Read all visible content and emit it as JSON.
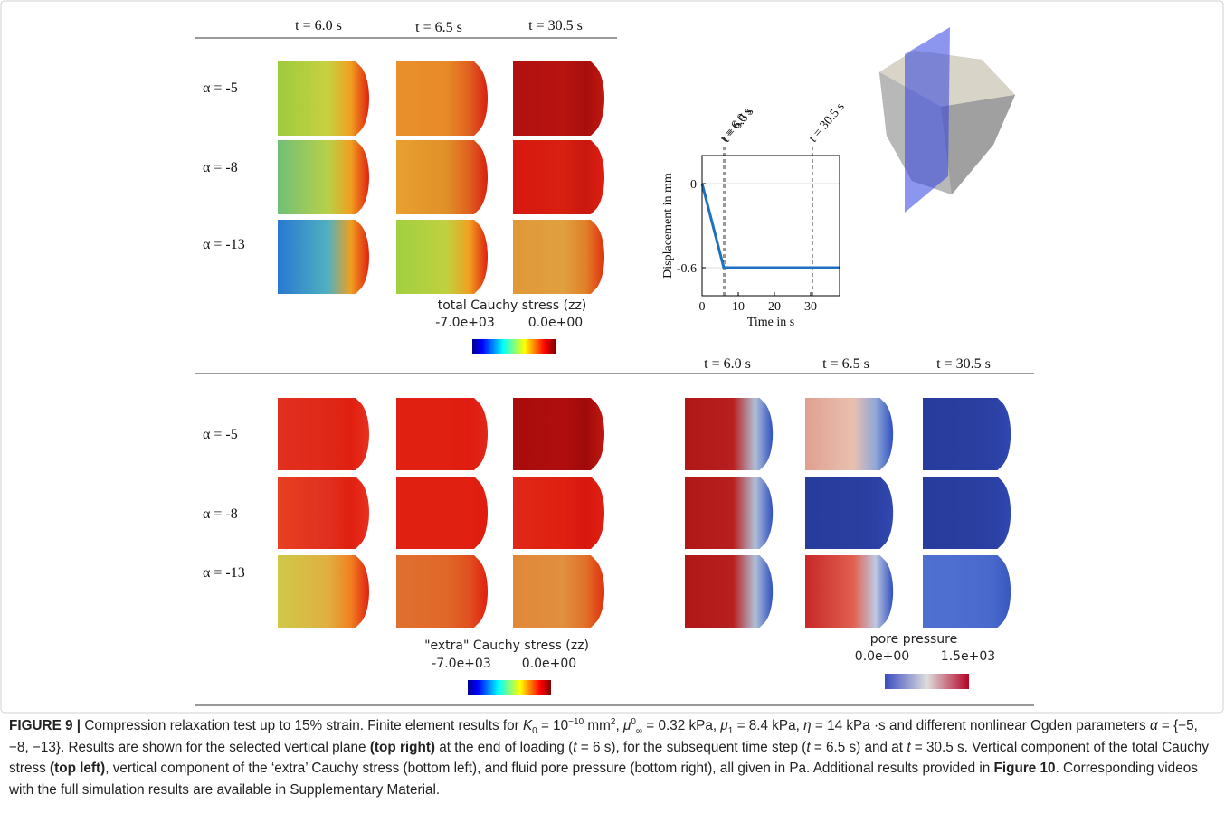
{
  "top_left": {
    "headers": [
      "t = 6.0 s",
      "t = 6.5 s",
      "t = 30.5 s"
    ],
    "row_labels": [
      "α = -5",
      "α = -8",
      "α = -13"
    ],
    "colorbar": {
      "title": "total Cauchy stress (zz)",
      "min_label": "-7.0e+03",
      "max_label": "0.0e+00"
    }
  },
  "bottom_left": {
    "row_labels": [
      "α = -5",
      "α = -8",
      "α = -13"
    ],
    "colorbar": {
      "title": "\"extra\" Cauchy stress (zz)",
      "min_label": "-7.0e+03",
      "max_label": "0.0e+00"
    }
  },
  "bottom_right": {
    "headers": [
      "t = 6.0 s",
      "t = 6.5 s",
      "t = 30.5 s"
    ],
    "colorbar": {
      "title": "pore pressure",
      "min_label": "0.0e+00",
      "max_label": "1.5e+03"
    }
  },
  "chart_data": {
    "type": "line",
    "xlabel": "Time in s",
    "ylabel": "Displacement in mm",
    "x": [
      0,
      6,
      38
    ],
    "series": [
      {
        "color": "#1f70c1",
        "values": [
          0,
          -0.6,
          -0.6
        ]
      }
    ],
    "xlim": [
      0,
      38
    ],
    "ylim": [
      -0.8,
      0.2
    ],
    "xticks": [
      0,
      10,
      20,
      30
    ],
    "yticks": [
      -0.6,
      0
    ],
    "grid": true,
    "annotations": [
      {
        "x": 6,
        "label": "t = 6.0 s"
      },
      {
        "x": 6.5,
        "label": "t = 6.5 s"
      },
      {
        "x": 30.5,
        "label": "t = 30.5 s"
      }
    ]
  },
  "caption": {
    "segments": [
      {
        "text": "FIGURE 9 |",
        "style": "bold"
      },
      {
        "text": " Compression relaxation test up to 15% strain. Finite element results for "
      },
      {
        "text": "K",
        "style": "italic"
      },
      {
        "text": "0",
        "style": "sub"
      },
      {
        "text": " = 10"
      },
      {
        "text": "−10",
        "style": "sup"
      },
      {
        "text": " mm"
      },
      {
        "text": "2",
        "style": "sup"
      },
      {
        "text": ", "
      },
      {
        "text": "μ",
        "style": "italic"
      },
      {
        "text": "0",
        "style": "sup"
      },
      {
        "text": "∞",
        "style": "sub"
      },
      {
        "text": " = 0.32 kPa, "
      },
      {
        "text": "μ",
        "style": "italic"
      },
      {
        "text": "1",
        "style": "sub"
      },
      {
        "text": " = 8.4 kPa, "
      },
      {
        "text": "η",
        "style": "italic"
      },
      {
        "text": " = 14 kPa ·s and different nonlinear Ogden parameters "
      },
      {
        "text": "α",
        "style": "italic"
      },
      {
        "text": " = {−5, −8, −13}. Results are shown for the selected vertical plane "
      },
      {
        "text": "(top right)",
        "style": "bold"
      },
      {
        "text": " at the end of loading ("
      },
      {
        "text": "t",
        "style": "italic"
      },
      {
        "text": " = 6 s), for the subsequent time step ("
      },
      {
        "text": "t",
        "style": "italic"
      },
      {
        "text": " = 6.5 s) and at "
      },
      {
        "text": "t",
        "style": "italic"
      },
      {
        "text": " = 30.5 s. Vertical component of the total Cauchy stress "
      },
      {
        "text": "(top left)",
        "style": "bold"
      },
      {
        "text": ", vertical component of the ‘extra’ Cauchy stress (bottom left), and fluid pore pressure (bottom right), all given in Pa. Additional results provided in "
      },
      {
        "text": "Figure 10",
        "style": "bold"
      },
      {
        "text": ". Corresponding videos with the full simulation results are available in Supplementary Material."
      }
    ]
  }
}
